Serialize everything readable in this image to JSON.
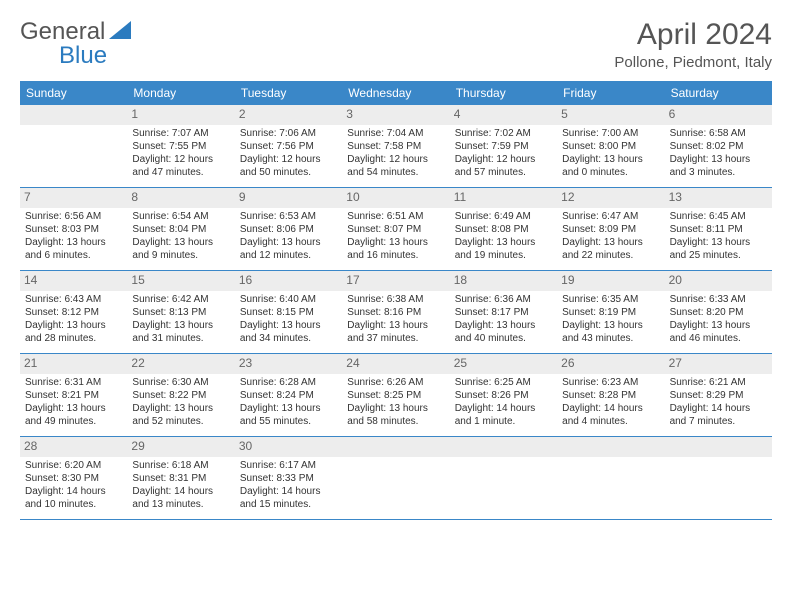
{
  "logo": {
    "text1": "General",
    "text2": "Blue",
    "icon_color": "#2b7bbf"
  },
  "title": "April 2024",
  "subtitle": "Pollone, Piedmont, Italy",
  "weekdays": [
    "Sunday",
    "Monday",
    "Tuesday",
    "Wednesday",
    "Thursday",
    "Friday",
    "Saturday"
  ],
  "header_bg": "#3a87c8",
  "daynum_bg": "#ededed",
  "text_color": "#333",
  "font_size_body": 10,
  "weeks": [
    [
      {
        "num": "",
        "lines": []
      },
      {
        "num": "1",
        "lines": [
          "Sunrise: 7:07 AM",
          "Sunset: 7:55 PM",
          "Daylight: 12 hours",
          "and 47 minutes."
        ]
      },
      {
        "num": "2",
        "lines": [
          "Sunrise: 7:06 AM",
          "Sunset: 7:56 PM",
          "Daylight: 12 hours",
          "and 50 minutes."
        ]
      },
      {
        "num": "3",
        "lines": [
          "Sunrise: 7:04 AM",
          "Sunset: 7:58 PM",
          "Daylight: 12 hours",
          "and 54 minutes."
        ]
      },
      {
        "num": "4",
        "lines": [
          "Sunrise: 7:02 AM",
          "Sunset: 7:59 PM",
          "Daylight: 12 hours",
          "and 57 minutes."
        ]
      },
      {
        "num": "5",
        "lines": [
          "Sunrise: 7:00 AM",
          "Sunset: 8:00 PM",
          "Daylight: 13 hours",
          "and 0 minutes."
        ]
      },
      {
        "num": "6",
        "lines": [
          "Sunrise: 6:58 AM",
          "Sunset: 8:02 PM",
          "Daylight: 13 hours",
          "and 3 minutes."
        ]
      }
    ],
    [
      {
        "num": "7",
        "lines": [
          "Sunrise: 6:56 AM",
          "Sunset: 8:03 PM",
          "Daylight: 13 hours",
          "and 6 minutes."
        ]
      },
      {
        "num": "8",
        "lines": [
          "Sunrise: 6:54 AM",
          "Sunset: 8:04 PM",
          "Daylight: 13 hours",
          "and 9 minutes."
        ]
      },
      {
        "num": "9",
        "lines": [
          "Sunrise: 6:53 AM",
          "Sunset: 8:06 PM",
          "Daylight: 13 hours",
          "and 12 minutes."
        ]
      },
      {
        "num": "10",
        "lines": [
          "Sunrise: 6:51 AM",
          "Sunset: 8:07 PM",
          "Daylight: 13 hours",
          "and 16 minutes."
        ]
      },
      {
        "num": "11",
        "lines": [
          "Sunrise: 6:49 AM",
          "Sunset: 8:08 PM",
          "Daylight: 13 hours",
          "and 19 minutes."
        ]
      },
      {
        "num": "12",
        "lines": [
          "Sunrise: 6:47 AM",
          "Sunset: 8:09 PM",
          "Daylight: 13 hours",
          "and 22 minutes."
        ]
      },
      {
        "num": "13",
        "lines": [
          "Sunrise: 6:45 AM",
          "Sunset: 8:11 PM",
          "Daylight: 13 hours",
          "and 25 minutes."
        ]
      }
    ],
    [
      {
        "num": "14",
        "lines": [
          "Sunrise: 6:43 AM",
          "Sunset: 8:12 PM",
          "Daylight: 13 hours",
          "and 28 minutes."
        ]
      },
      {
        "num": "15",
        "lines": [
          "Sunrise: 6:42 AM",
          "Sunset: 8:13 PM",
          "Daylight: 13 hours",
          "and 31 minutes."
        ]
      },
      {
        "num": "16",
        "lines": [
          "Sunrise: 6:40 AM",
          "Sunset: 8:15 PM",
          "Daylight: 13 hours",
          "and 34 minutes."
        ]
      },
      {
        "num": "17",
        "lines": [
          "Sunrise: 6:38 AM",
          "Sunset: 8:16 PM",
          "Daylight: 13 hours",
          "and 37 minutes."
        ]
      },
      {
        "num": "18",
        "lines": [
          "Sunrise: 6:36 AM",
          "Sunset: 8:17 PM",
          "Daylight: 13 hours",
          "and 40 minutes."
        ]
      },
      {
        "num": "19",
        "lines": [
          "Sunrise: 6:35 AM",
          "Sunset: 8:19 PM",
          "Daylight: 13 hours",
          "and 43 minutes."
        ]
      },
      {
        "num": "20",
        "lines": [
          "Sunrise: 6:33 AM",
          "Sunset: 8:20 PM",
          "Daylight: 13 hours",
          "and 46 minutes."
        ]
      }
    ],
    [
      {
        "num": "21",
        "lines": [
          "Sunrise: 6:31 AM",
          "Sunset: 8:21 PM",
          "Daylight: 13 hours",
          "and 49 minutes."
        ]
      },
      {
        "num": "22",
        "lines": [
          "Sunrise: 6:30 AM",
          "Sunset: 8:22 PM",
          "Daylight: 13 hours",
          "and 52 minutes."
        ]
      },
      {
        "num": "23",
        "lines": [
          "Sunrise: 6:28 AM",
          "Sunset: 8:24 PM",
          "Daylight: 13 hours",
          "and 55 minutes."
        ]
      },
      {
        "num": "24",
        "lines": [
          "Sunrise: 6:26 AM",
          "Sunset: 8:25 PM",
          "Daylight: 13 hours",
          "and 58 minutes."
        ]
      },
      {
        "num": "25",
        "lines": [
          "Sunrise: 6:25 AM",
          "Sunset: 8:26 PM",
          "Daylight: 14 hours",
          "and 1 minute."
        ]
      },
      {
        "num": "26",
        "lines": [
          "Sunrise: 6:23 AM",
          "Sunset: 8:28 PM",
          "Daylight: 14 hours",
          "and 4 minutes."
        ]
      },
      {
        "num": "27",
        "lines": [
          "Sunrise: 6:21 AM",
          "Sunset: 8:29 PM",
          "Daylight: 14 hours",
          "and 7 minutes."
        ]
      }
    ],
    [
      {
        "num": "28",
        "lines": [
          "Sunrise: 6:20 AM",
          "Sunset: 8:30 PM",
          "Daylight: 14 hours",
          "and 10 minutes."
        ]
      },
      {
        "num": "29",
        "lines": [
          "Sunrise: 6:18 AM",
          "Sunset: 8:31 PM",
          "Daylight: 14 hours",
          "and 13 minutes."
        ]
      },
      {
        "num": "30",
        "lines": [
          "Sunrise: 6:17 AM",
          "Sunset: 8:33 PM",
          "Daylight: 14 hours",
          "and 15 minutes."
        ]
      },
      {
        "num": "",
        "lines": []
      },
      {
        "num": "",
        "lines": []
      },
      {
        "num": "",
        "lines": []
      },
      {
        "num": "",
        "lines": []
      }
    ]
  ]
}
